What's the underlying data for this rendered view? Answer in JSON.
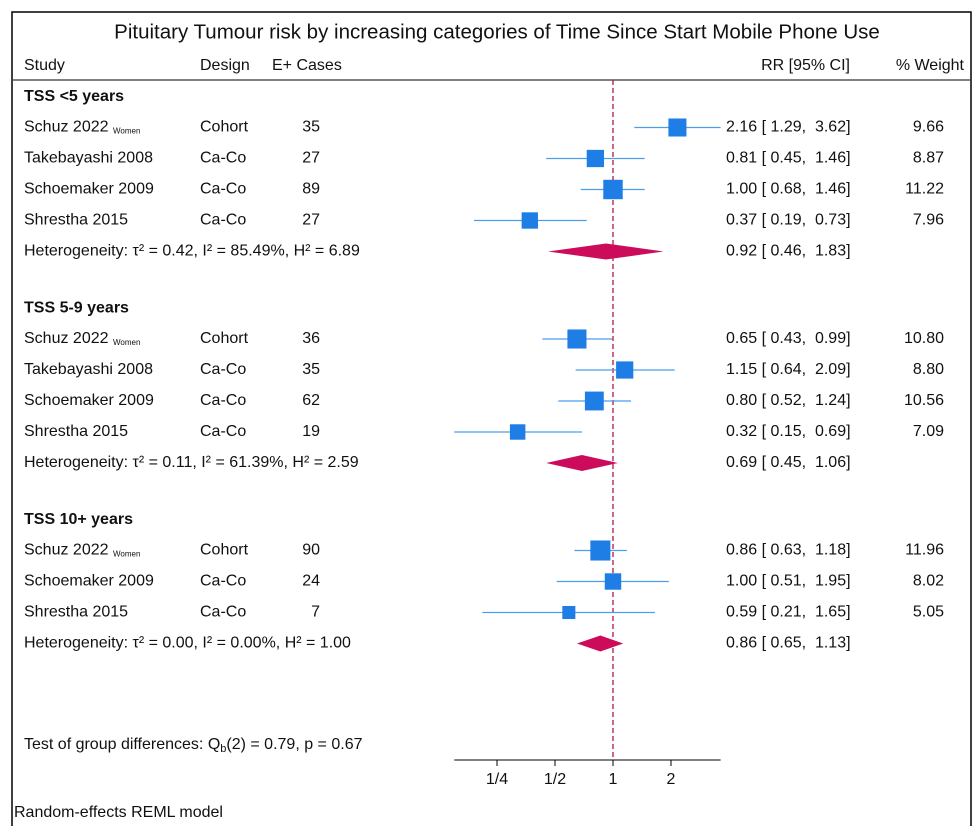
{
  "chart_data": {
    "type": "forest",
    "title": "Pituitary Tumour risk by increasing categories of Time Since Start Mobile Phone Use",
    "columns": {
      "study": "Study",
      "design": "Design",
      "cases": "E+ Cases",
      "ci": "RR [95% CI]",
      "weight": "% Weight"
    },
    "groups": [
      {
        "name": "TSS <5 years",
        "studies": [
          {
            "name": "Schuz 2022",
            "note": "Women",
            "design": "Cohort",
            "cases": 35,
            "rr": 2.16,
            "lower": 1.29,
            "upper": 3.62,
            "ci_label": "2.16 [ 1.29,  3.62]",
            "weight": 9.66,
            "weight_label": "9.66"
          },
          {
            "name": "Takebayashi 2008",
            "design": "Ca-Co",
            "cases": 27,
            "rr": 0.81,
            "lower": 0.45,
            "upper": 1.46,
            "ci_label": "0.81 [ 0.45,  1.46]",
            "weight": 8.87,
            "weight_label": "8.87"
          },
          {
            "name": "Schoemaker 2009",
            "design": "Ca-Co",
            "cases": 89,
            "rr": 1,
            "lower": 0.68,
            "upper": 1.46,
            "ci_label": "1.00 [ 0.68,  1.46]",
            "weight": 11.22,
            "weight_label": "11.22"
          },
          {
            "name": "Shrestha 2015",
            "design": "Ca-Co",
            "cases": 27,
            "rr": 0.37,
            "lower": 0.19,
            "upper": 0.73,
            "ci_label": "0.37 [ 0.19,  0.73]",
            "weight": 7.96,
            "weight_label": "7.96"
          }
        ],
        "heterogeneity": "Heterogeneity: τ² = 0.42, I² = 85.49%, H² = 6.89",
        "pooled": {
          "rr": 0.92,
          "lower": 0.46,
          "upper": 1.83,
          "ci_label": "0.92 [ 0.46,  1.83]"
        }
      },
      {
        "name": "TSS 5-9 years",
        "studies": [
          {
            "name": "Schuz 2022",
            "note": "Women",
            "design": "Cohort",
            "cases": 36,
            "rr": 0.65,
            "lower": 0.43,
            "upper": 0.99,
            "ci_label": "0.65 [ 0.43,  0.99]",
            "weight": 10.8,
            "weight_label": "10.80"
          },
          {
            "name": "Takebayashi 2008",
            "design": "Ca-Co",
            "cases": 35,
            "rr": 1.15,
            "lower": 0.64,
            "upper": 2.09,
            "ci_label": "1.15 [ 0.64,  2.09]",
            "weight": 8.8,
            "weight_label": "8.80"
          },
          {
            "name": "Schoemaker 2009",
            "design": "Ca-Co",
            "cases": 62,
            "rr": 0.8,
            "lower": 0.52,
            "upper": 1.24,
            "ci_label": "0.80 [ 0.52,  1.24]",
            "weight": 10.56,
            "weight_label": "10.56"
          },
          {
            "name": "Shrestha 2015",
            "design": "Ca-Co",
            "cases": 19,
            "rr": 0.32,
            "lower": 0.15,
            "upper": 0.69,
            "ci_label": "0.32 [ 0.15,  0.69]",
            "weight": 7.09,
            "weight_label": "7.09"
          }
        ],
        "heterogeneity": "Heterogeneity: τ² = 0.11, I² = 61.39%, H² = 2.59",
        "pooled": {
          "rr": 0.69,
          "lower": 0.45,
          "upper": 1.06,
          "ci_label": "0.69 [ 0.45,  1.06]"
        }
      },
      {
        "name": "TSS 10+ years",
        "studies": [
          {
            "name": "Schuz 2022",
            "note": "Women",
            "design": "Cohort",
            "cases": 90,
            "rr": 0.86,
            "lower": 0.63,
            "upper": 1.18,
            "ci_label": "0.86 [ 0.63,  1.18]",
            "weight": 11.96,
            "weight_label": "11.96"
          },
          {
            "name": "Schoemaker 2009",
            "design": "Ca-Co",
            "cases": 24,
            "rr": 1,
            "lower": 0.51,
            "upper": 1.95,
            "ci_label": "1.00 [ 0.51,  1.95]",
            "weight": 8.02,
            "weight_label": "8.02"
          },
          {
            "name": "Shrestha 2015",
            "design": "Ca-Co",
            "cases": 7,
            "rr": 0.59,
            "lower": 0.21,
            "upper": 1.65,
            "ci_label": "0.59 [ 0.21,  1.65]",
            "weight": 5.05,
            "weight_label": "5.05"
          }
        ],
        "heterogeneity": "Heterogeneity: τ² = 0.00, I² = 0.00%, H² = 1.00",
        "pooled": {
          "rr": 0.86,
          "lower": 0.65,
          "upper": 1.13,
          "ci_label": "0.86 [ 0.65,  1.13]"
        }
      }
    ],
    "test": {
      "prefix": "Test of group differences: Q",
      "sub": "b",
      "suffix": "(2) = 0.79, p = 0.67"
    },
    "footer": "Random-effects REML model",
    "log_scale": true,
    "xlim": [
      0.15,
      3.62
    ],
    "xticks": [
      {
        "value": 0.25,
        "label": "1/4"
      },
      {
        "value": 0.5,
        "label": "1/2"
      },
      1,
      2
    ],
    "null_line": 1,
    "box_color": "#1e7ee6",
    "ci_color": "#4c9eea",
    "pooled_color": "#cc0c5a",
    "null_line_color": "#b0134a"
  }
}
